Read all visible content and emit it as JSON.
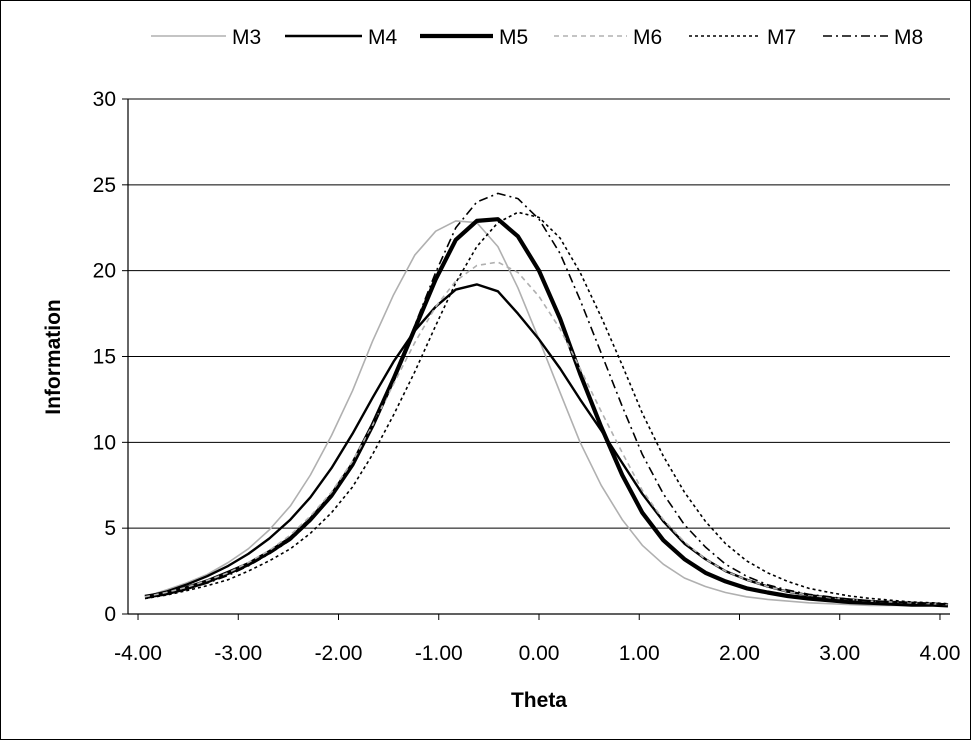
{
  "chart_data": {
    "type": "line",
    "xlabel": "Theta",
    "ylabel": "Information",
    "xlim": [
      -4.1,
      4.1
    ],
    "ylim": [
      0,
      30
    ],
    "x_ticks": [
      "-4.00",
      "-3.00",
      "-2.00",
      "-1.00",
      "0.00",
      "1.00",
      "2.00",
      "3.00",
      "4.00"
    ],
    "y_ticks": [
      "0",
      "5",
      "10",
      "15",
      "20",
      "25",
      "30"
    ],
    "grid": "horizontal",
    "legend_position": "top",
    "x": [
      -3.93,
      -3.72,
      -3.52,
      -3.31,
      -3.1,
      -2.9,
      -2.69,
      -2.48,
      -2.28,
      -2.07,
      -1.86,
      -1.66,
      -1.45,
      -1.24,
      -1.03,
      -0.83,
      -0.62,
      -0.41,
      -0.21,
      0.0,
      0.21,
      0.41,
      0.62,
      0.83,
      1.03,
      1.24,
      1.45,
      1.66,
      1.86,
      2.07,
      2.28,
      2.48,
      2.69,
      2.9,
      3.1,
      3.31,
      3.52,
      3.72,
      3.93,
      4.08
    ],
    "series": [
      {
        "name": "M3",
        "color": "#b0b0b0",
        "dash": "solid",
        "values": [
          1.0,
          1.4,
          1.8,
          2.3,
          3.0,
          3.8,
          4.9,
          6.3,
          8.1,
          10.4,
          13.0,
          15.9,
          18.6,
          20.9,
          22.3,
          22.9,
          22.8,
          21.4,
          19.0,
          16.0,
          12.9,
          10.0,
          7.5,
          5.5,
          4.0,
          2.9,
          2.1,
          1.6,
          1.25,
          1.0,
          0.85,
          0.75,
          0.65,
          0.6,
          0.55,
          0.5,
          0.5,
          0.5,
          0.5,
          0.5
        ]
      },
      {
        "name": "M4",
        "color": "#000000",
        "dash": "solid",
        "values": [
          1.0,
          1.3,
          1.7,
          2.2,
          2.8,
          3.5,
          4.4,
          5.5,
          6.8,
          8.5,
          10.5,
          12.6,
          14.7,
          16.5,
          17.9,
          18.9,
          19.2,
          18.8,
          17.5,
          16.0,
          14.3,
          12.5,
          10.7,
          8.8,
          7.0,
          5.4,
          4.1,
          3.2,
          2.5,
          2.0,
          1.6,
          1.3,
          1.1,
          0.95,
          0.85,
          0.75,
          0.7,
          0.65,
          0.6,
          0.55
        ]
      },
      {
        "name": "M5",
        "color": "#000000",
        "dash": "solid",
        "values": [
          1.0,
          1.2,
          1.5,
          1.9,
          2.4,
          2.9,
          3.6,
          4.4,
          5.5,
          6.9,
          8.7,
          11.0,
          13.7,
          16.6,
          19.5,
          21.8,
          22.9,
          23.0,
          22.0,
          20.0,
          17.2,
          14.0,
          10.9,
          8.1,
          5.9,
          4.3,
          3.2,
          2.4,
          1.9,
          1.5,
          1.25,
          1.05,
          0.9,
          0.8,
          0.7,
          0.65,
          0.6,
          0.55,
          0.55,
          0.5
        ]
      },
      {
        "name": "M6",
        "color": "#b0b0b0",
        "dash": "dash",
        "values": [
          1.0,
          1.25,
          1.55,
          1.95,
          2.4,
          3.0,
          3.7,
          4.6,
          5.7,
          7.1,
          8.9,
          11.0,
          13.4,
          15.8,
          17.9,
          19.4,
          20.3,
          20.5,
          19.9,
          18.5,
          16.6,
          14.3,
          11.8,
          9.4,
          7.2,
          5.5,
          4.2,
          3.2,
          2.5,
          2.0,
          1.6,
          1.3,
          1.1,
          0.95,
          0.85,
          0.75,
          0.7,
          0.65,
          0.6,
          0.55
        ]
      },
      {
        "name": "M7",
        "color": "#000000",
        "dash": "dot",
        "values": [
          0.9,
          1.1,
          1.35,
          1.65,
          2.0,
          2.5,
          3.1,
          3.8,
          4.7,
          5.9,
          7.4,
          9.3,
          11.6,
          14.1,
          16.8,
          19.3,
          21.4,
          22.8,
          23.4,
          23.1,
          21.9,
          19.9,
          17.3,
          14.5,
          11.7,
          9.2,
          7.1,
          5.4,
          4.1,
          3.1,
          2.4,
          1.9,
          1.5,
          1.25,
          1.05,
          0.9,
          0.8,
          0.7,
          0.65,
          0.6
        ]
      },
      {
        "name": "M8",
        "color": "#000000",
        "dash": "dashdot",
        "values": [
          0.9,
          1.15,
          1.45,
          1.8,
          2.25,
          2.8,
          3.5,
          4.3,
          5.4,
          6.8,
          8.6,
          10.9,
          13.6,
          16.8,
          19.9,
          22.5,
          24.0,
          24.5,
          24.2,
          23.0,
          21.0,
          18.3,
          15.2,
          12.1,
          9.3,
          7.0,
          5.2,
          3.9,
          2.9,
          2.2,
          1.7,
          1.4,
          1.15,
          1.0,
          0.85,
          0.75,
          0.7,
          0.65,
          0.6,
          0.55
        ]
      }
    ]
  }
}
